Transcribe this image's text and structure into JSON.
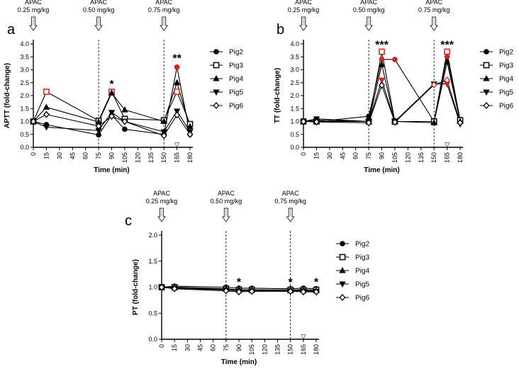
{
  "chart_data": [
    {
      "type": "line",
      "panel_label": "a",
      "ylabel": "APTT (fold-change)",
      "xlabel": "Time (min)",
      "x_ticks": [
        0,
        15,
        30,
        45,
        60,
        75,
        90,
        105,
        120,
        135,
        150,
        165,
        180
      ],
      "y_ticks": [
        "0.0",
        "0.5",
        "1.0",
        "1.5",
        "2.0",
        "2.5",
        "3.0",
        "3.5",
        "4.0"
      ],
      "ylim": [
        0,
        4.0
      ],
      "xlim": [
        0,
        180
      ],
      "doses": [
        {
          "x": 0,
          "line1": "APAC",
          "line2": "0.25 mg/kg"
        },
        {
          "x": 75,
          "line1": "APAC",
          "line2": "0.50 mg/kg"
        },
        {
          "x": 150,
          "line1": "APAC",
          "line2": "0.75 mg/kg"
        }
      ],
      "x": [
        0,
        15,
        75,
        90,
        105,
        150,
        165,
        180
      ],
      "series": [
        {
          "name": "Pig2",
          "values": [
            1.0,
            0.88,
            0.48,
            1.25,
            0.7,
            0.5,
            3.1,
            0.5
          ],
          "red": [
            6
          ]
        },
        {
          "name": "Pig3",
          "values": [
            1.0,
            2.15,
            1.03,
            2.15,
            1.1,
            1.05,
            2.15,
            0.9
          ],
          "red": [
            1,
            3,
            6
          ]
        },
        {
          "name": "Pig4",
          "values": [
            1.0,
            1.55,
            0.98,
            2.1,
            1.45,
            1.0,
            2.5,
            0.8
          ],
          "red": []
        },
        {
          "name": "Pig5",
          "values": [
            1.0,
            0.78,
            0.65,
            1.35,
            1.0,
            0.6,
            1.4,
            0.6
          ],
          "red": []
        },
        {
          "name": "Pig6",
          "values": [
            1.0,
            1.27,
            0.82,
            1.2,
            1.0,
            0.45,
            1.25,
            0.5
          ],
          "red": []
        }
      ],
      "annotations": [
        {
          "x": 90,
          "y": 2.3,
          "text": "*"
        },
        {
          "x": 165,
          "y": 3.3,
          "text": "**"
        }
      ],
      "markers": [
        {
          "x": 165,
          "symbol": "▽"
        }
      ]
    },
    {
      "type": "line",
      "panel_label": "b",
      "ylabel": "TT (fold-change)",
      "xlabel": "Time (min)",
      "x_ticks": [
        0,
        15,
        30,
        45,
        60,
        75,
        90,
        105,
        120,
        135,
        150,
        165,
        180
      ],
      "y_ticks": [
        "0.0",
        "0.5",
        "1.0",
        "1.5",
        "2.0",
        "2.5",
        "3.0",
        "3.5",
        "4.0"
      ],
      "ylim": [
        0,
        4.0
      ],
      "xlim": [
        0,
        180
      ],
      "doses": [
        {
          "x": 0,
          "line1": "APAC",
          "line2": "0.25 mg/kg"
        },
        {
          "x": 75,
          "line1": "APAC",
          "line2": "0.50 mg/kg"
        },
        {
          "x": 150,
          "line1": "APAC",
          "line2": "0.75 mg/kg"
        }
      ],
      "x": [
        0,
        15,
        75,
        90,
        105,
        150,
        165,
        180
      ],
      "series": [
        {
          "name": "Pig2",
          "values": [
            1.0,
            1.0,
            1.2,
            3.4,
            3.4,
            1.0,
            3.5,
            1.0
          ],
          "red": [
            3,
            4,
            6
          ]
        },
        {
          "name": "Pig3",
          "values": [
            1.0,
            1.0,
            1.0,
            3.7,
            1.0,
            1.0,
            3.7,
            1.05
          ],
          "red": [
            3,
            6
          ]
        },
        {
          "name": "Pig4",
          "values": [
            1.0,
            1.05,
            1.0,
            3.2,
            1.0,
            0.95,
            3.3,
            1.0
          ],
          "red": []
        },
        {
          "name": "Pig5",
          "values": [
            1.0,
            1.1,
            1.0,
            2.6,
            1.0,
            2.45,
            2.45,
            0.9
          ],
          "red": [
            3,
            6
          ]
        },
        {
          "name": "Pig6",
          "values": [
            1.0,
            0.98,
            0.95,
            2.4,
            0.97,
            2.42,
            2.6,
            0.95
          ],
          "red": [
            5,
            6
          ]
        }
      ],
      "annotations": [
        {
          "x": 90,
          "y": 3.82,
          "text": "***"
        },
        {
          "x": 165,
          "y": 3.82,
          "text": "***"
        }
      ],
      "markers": [
        {
          "x": 165,
          "symbol": "▽"
        }
      ]
    },
    {
      "type": "line",
      "panel_label": "c",
      "ylabel": "PT (fold-change)",
      "xlabel": "Time (min)",
      "x_ticks": [
        0,
        15,
        30,
        45,
        60,
        75,
        90,
        105,
        120,
        135,
        150,
        165,
        180
      ],
      "y_ticks": [
        "0.0",
        "0.5",
        "1.0",
        "1.5",
        "2.0"
      ],
      "ylim": [
        0,
        2.0
      ],
      "xlim": [
        0,
        180
      ],
      "doses": [
        {
          "x": 0,
          "line1": "APAC",
          "line2": "0.25 mg/kg"
        },
        {
          "x": 75,
          "line1": "APAC",
          "line2": "0.50 mg/kg"
        },
        {
          "x": 150,
          "line1": "APAC",
          "line2": "0.75 mg/kg"
        }
      ],
      "x": [
        0,
        15,
        75,
        90,
        105,
        150,
        165,
        180
      ],
      "series": [
        {
          "name": "Pig2",
          "values": [
            1.0,
            1.02,
            1.0,
            0.98,
            0.98,
            0.97,
            0.98,
            0.97
          ],
          "red": []
        },
        {
          "name": "Pig3",
          "values": [
            1.0,
            1.0,
            0.97,
            0.95,
            0.95,
            0.95,
            0.95,
            0.95
          ],
          "red": []
        },
        {
          "name": "Pig4",
          "values": [
            1.0,
            0.99,
            0.96,
            0.94,
            0.94,
            0.93,
            0.94,
            0.93
          ],
          "red": []
        },
        {
          "name": "Pig5",
          "values": [
            1.0,
            0.98,
            0.95,
            0.93,
            0.93,
            0.93,
            0.93,
            0.92
          ],
          "red": []
        },
        {
          "name": "Pig6",
          "values": [
            1.0,
            0.97,
            0.93,
            0.91,
            0.92,
            0.92,
            0.91,
            0.91
          ],
          "red": []
        }
      ],
      "annotations": [
        {
          "x": 90,
          "y": 1.03,
          "text": "*"
        },
        {
          "x": 150,
          "y": 1.03,
          "text": "*"
        },
        {
          "x": 180,
          "y": 1.03,
          "text": "*"
        }
      ],
      "markers": [
        {
          "x": 165,
          "symbol": "▽"
        }
      ]
    }
  ]
}
